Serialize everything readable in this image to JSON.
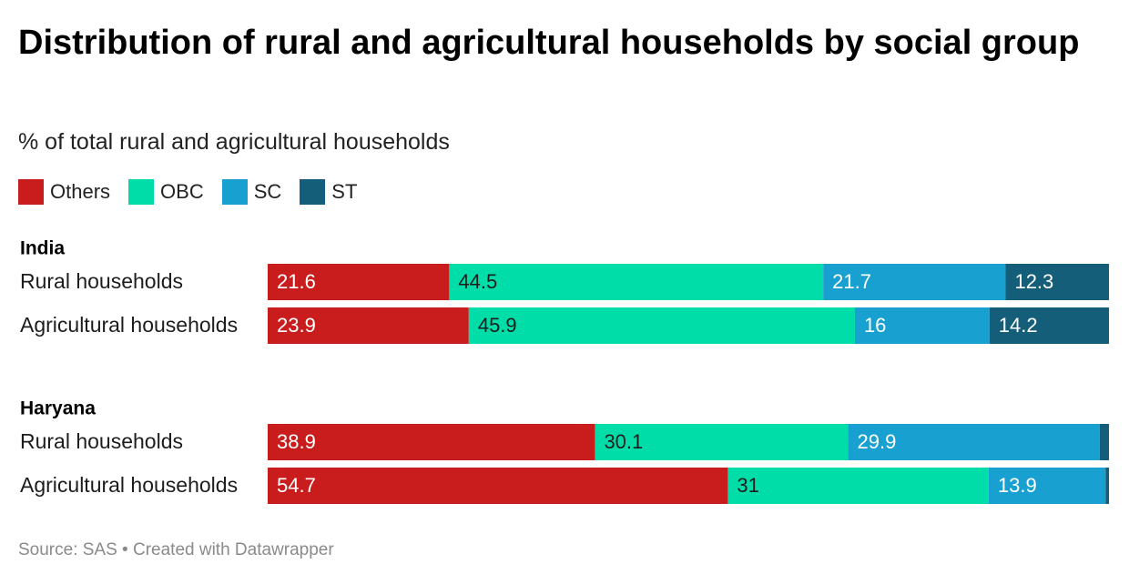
{
  "title": "Distribution of rural and agricultural households by social group",
  "subtitle": "% of total rural and agricultural households",
  "legend": [
    {
      "label": "Others",
      "color": "#c91d1d"
    },
    {
      "label": "OBC",
      "color": "#00dda8"
    },
    {
      "label": "SC",
      "color": "#18a0d0"
    },
    {
      "label": "ST",
      "color": "#155e7a"
    }
  ],
  "footer": "Source: SAS • Created with Datawrapper",
  "chart_data": {
    "type": "bar",
    "orientation": "horizontal",
    "stacked": true,
    "normalized_to": 100,
    "series_names": [
      "Others",
      "OBC",
      "SC",
      "ST"
    ],
    "groups": [
      {
        "name": "India",
        "rows": [
          {
            "label": "Rural households",
            "values": [
              21.6,
              44.5,
              21.7,
              12.3
            ],
            "labels": [
              "21.6",
              "44.5",
              "21.7",
              "12.3"
            ]
          },
          {
            "label": "Agricultural households",
            "values": [
              23.9,
              45.9,
              16,
              14.2
            ],
            "labels": [
              "23.9",
              "45.9",
              "16",
              "14.2"
            ]
          }
        ]
      },
      {
        "name": "Haryana",
        "rows": [
          {
            "label": "Rural households",
            "values": [
              38.9,
              30.1,
              29.9,
              1.1
            ],
            "labels": [
              "38.9",
              "30.1",
              "29.9",
              ""
            ]
          },
          {
            "label": "Agricultural households",
            "values": [
              54.7,
              31,
              13.9,
              0.4
            ],
            "labels": [
              "54.7",
              "31",
              "13.9",
              ""
            ]
          }
        ]
      }
    ]
  }
}
